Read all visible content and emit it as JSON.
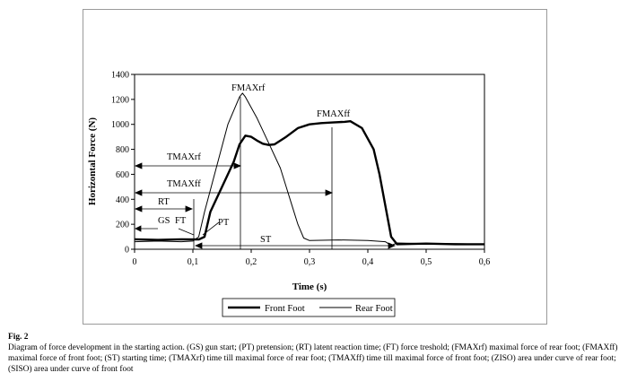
{
  "chart_data": {
    "type": "line",
    "xlabel": "Time (s)",
    "ylabel": "Horizontal Force (N)",
    "xlim": [
      0,
      0.6
    ],
    "ylim": [
      0,
      1400
    ],
    "x_ticks": [
      "0",
      "0,1",
      "0,2",
      "0,3",
      "0,4",
      "0,5",
      "0,6"
    ],
    "y_ticks": [
      "0",
      "200",
      "400",
      "600",
      "800",
      "1000",
      "1200",
      "1400"
    ],
    "series": [
      {
        "name": "Front Foot",
        "color": "#000000",
        "x": [
          0,
          0.04,
          0.08,
          0.11,
          0.12,
          0.13,
          0.15,
          0.17,
          0.18,
          0.19,
          0.2,
          0.21,
          0.22,
          0.23,
          0.24,
          0.26,
          0.28,
          0.3,
          0.32,
          0.34,
          0.36,
          0.37,
          0.39,
          0.41,
          0.42,
          0.43,
          0.44,
          0.45,
          0.5,
          0.55,
          0.6
        ],
        "y": [
          80,
          75,
          80,
          78,
          100,
          300,
          500,
          700,
          840,
          910,
          900,
          870,
          845,
          835,
          840,
          900,
          970,
          1000,
          1010,
          1015,
          1020,
          1025,
          970,
          800,
          600,
          350,
          100,
          40,
          45,
          40,
          40
        ]
      },
      {
        "name": "Rear Foot",
        "color": "#000000",
        "x": [
          0,
          0.04,
          0.08,
          0.1,
          0.11,
          0.12,
          0.14,
          0.16,
          0.18,
          0.185,
          0.19,
          0.21,
          0.23,
          0.25,
          0.26,
          0.27,
          0.28,
          0.29,
          0.3,
          0.35,
          0.4,
          0.43,
          0.44,
          0.45,
          0.5,
          0.55,
          0.6
        ],
        "y": [
          60,
          65,
          60,
          65,
          100,
          300,
          650,
          1000,
          1220,
          1250,
          1220,
          1050,
          850,
          650,
          500,
          350,
          200,
          90,
          70,
          75,
          70,
          60,
          30,
          50,
          45,
          45,
          40
        ]
      }
    ],
    "annotations": [
      "GS",
      "FT",
      "PT",
      "RT",
      "TMAXrf",
      "TMAXff",
      "FMAXrf",
      "FMAXff",
      "ST"
    ],
    "legend": "bottom"
  },
  "caption": {
    "label": "Fig. 2",
    "text": "Diagram of force development in the starting action. (GS) gun start; (PT) pretension; (RT) latent reaction time; (FT) force treshold; (FMAXrf) maximal force of rear foot; (FMAXff) maximal force of front foot; (ST) starting time; (TMAXrf) time till maximal force of rear foot; (TMAXff) time till maximal force of front foot; (ZISO) area under curve of rear foot; (SISO) area under curve of front foot"
  }
}
